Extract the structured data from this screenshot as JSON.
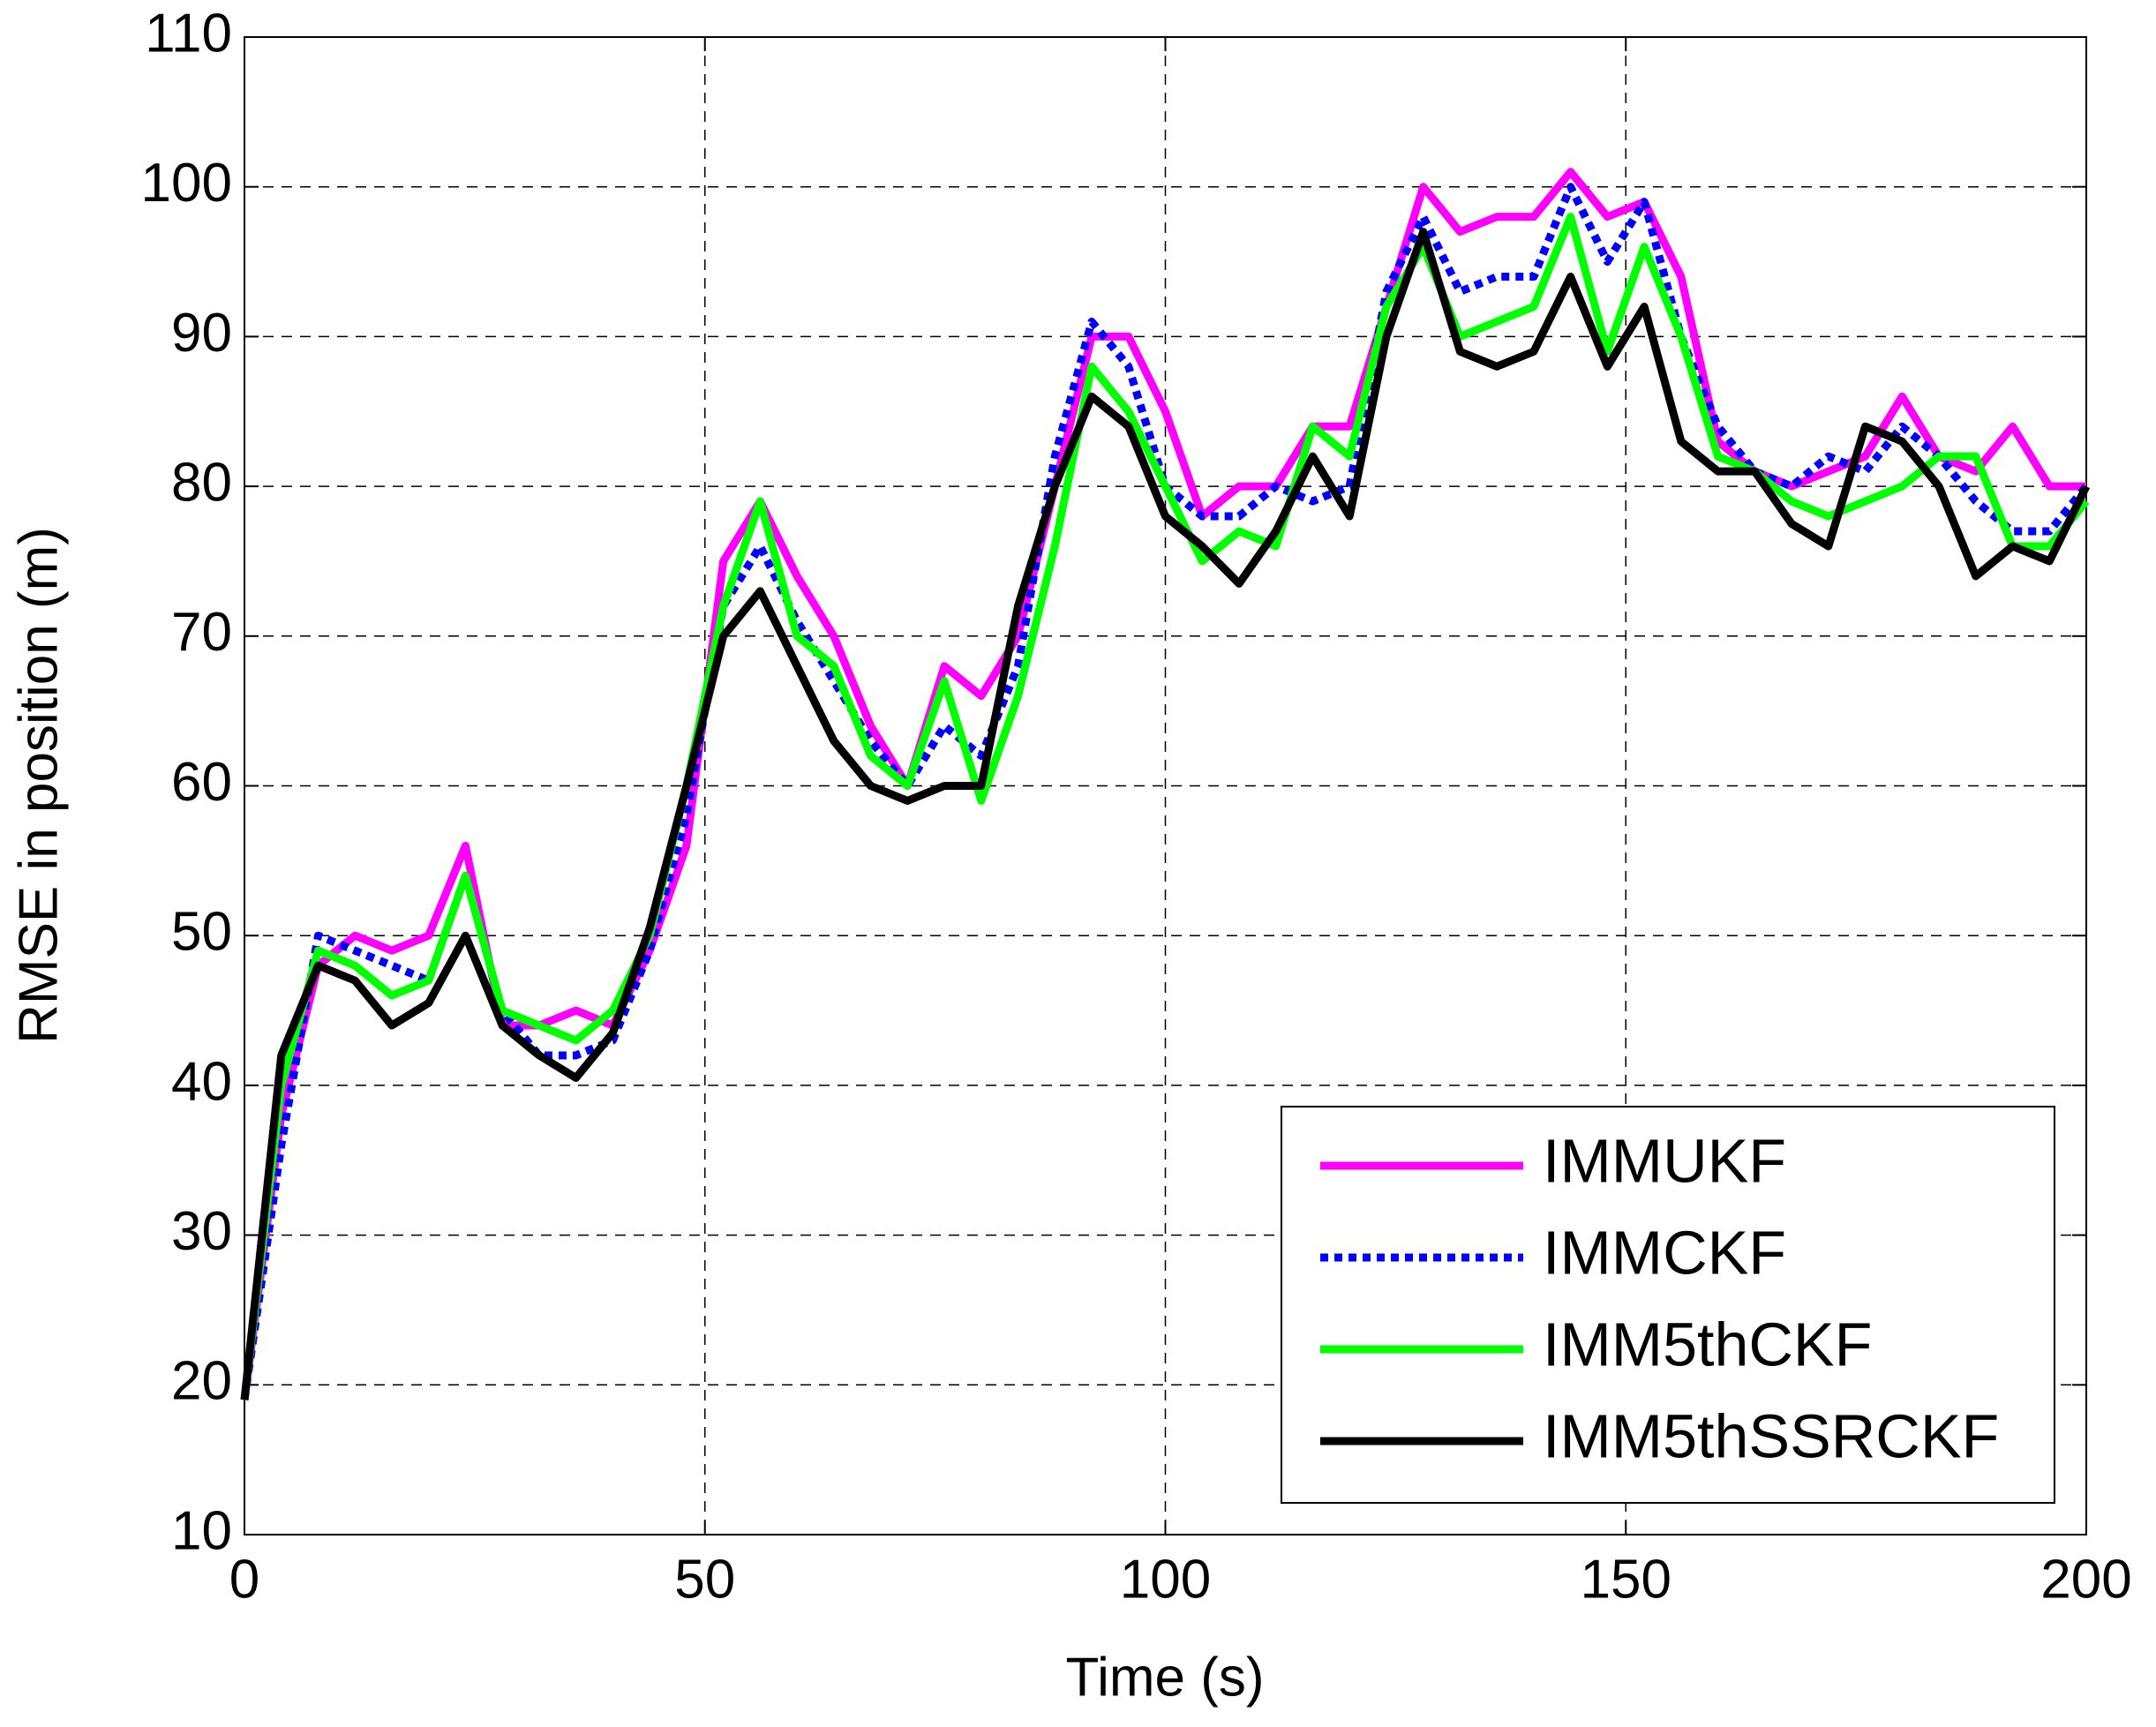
{
  "chart_data": {
    "type": "line",
    "x_label": "Time (s)",
    "y_label": "RMSE in position (m)",
    "x": [
      0,
      4,
      8,
      12,
      16,
      20,
      24,
      28,
      32,
      36,
      40,
      44,
      48,
      52,
      56,
      60,
      64,
      68,
      72,
      76,
      80,
      84,
      88,
      92,
      96,
      100,
      104,
      108,
      112,
      116,
      120,
      124,
      128,
      132,
      136,
      140,
      144,
      148,
      152,
      156,
      160,
      164,
      168,
      172,
      176,
      180,
      184,
      188,
      192,
      196,
      200
    ],
    "series": [
      {
        "name": "IMMUKF",
        "color": "#ff00ff",
        "dash": "solid",
        "values": [
          19,
          38,
          48,
          50,
          49,
          50,
          56,
          44,
          44,
          45,
          44,
          49,
          56,
          75,
          79,
          74,
          70,
          64,
          60,
          68,
          66,
          70,
          80,
          90,
          90,
          85,
          78,
          80,
          80,
          84,
          84,
          92,
          100,
          97,
          98,
          98,
          101,
          98,
          99,
          94,
          83,
          81,
          80,
          81,
          82,
          86,
          82,
          81,
          84,
          80,
          80
        ]
      },
      {
        "name": "IMMCKF",
        "color": "#0000ff",
        "dash": "dotted",
        "values": [
          19,
          36,
          50,
          49,
          48,
          47,
          54,
          45,
          42,
          42,
          43,
          49,
          58,
          72,
          76,
          71,
          67,
          63,
          60,
          64,
          62,
          68,
          82,
          91,
          88,
          80,
          78,
          78,
          80,
          79,
          80,
          93,
          98,
          93,
          94,
          94,
          100,
          95,
          99,
          90,
          84,
          81,
          80,
          82,
          81,
          84,
          82,
          79,
          77,
          77,
          80
        ]
      },
      {
        "name": "IMM5thCKF",
        "color": "#00ff00",
        "dash": "solid",
        "values": [
          19,
          40,
          49,
          48,
          46,
          47,
          54,
          45,
          44,
          43,
          45,
          50,
          60,
          72,
          79,
          70,
          68,
          62,
          60,
          67,
          59,
          66,
          76,
          88,
          85,
          80,
          75,
          77,
          76,
          84,
          82,
          92,
          96,
          90,
          91,
          92,
          98,
          89,
          96,
          90,
          82,
          81,
          79,
          78,
          79,
          80,
          82,
          82,
          76,
          76,
          79
        ]
      },
      {
        "name": "IMM5thSSRCKF",
        "color": "#000000",
        "dash": "solid",
        "values": [
          19,
          42,
          48,
          47,
          44,
          45.5,
          50,
          44,
          42,
          40.5,
          43.5,
          50.5,
          60,
          70,
          73,
          68,
          63,
          60,
          59,
          60,
          60,
          72,
          80,
          86,
          84,
          78,
          76,
          73.5,
          77,
          82,
          78,
          90,
          97,
          89,
          88,
          89,
          94,
          88,
          92,
          83,
          81,
          81,
          77.5,
          76,
          84,
          83,
          80,
          74,
          76,
          75,
          80
        ]
      }
    ],
    "xlim": [
      0,
      200
    ],
    "xticks": [
      0,
      50,
      100,
      150,
      200
    ],
    "ylim": [
      10,
      110
    ],
    "yticks": [
      10,
      20,
      30,
      40,
      50,
      60,
      70,
      80,
      90,
      100,
      110
    ],
    "grid": true,
    "legend": "lower right"
  }
}
